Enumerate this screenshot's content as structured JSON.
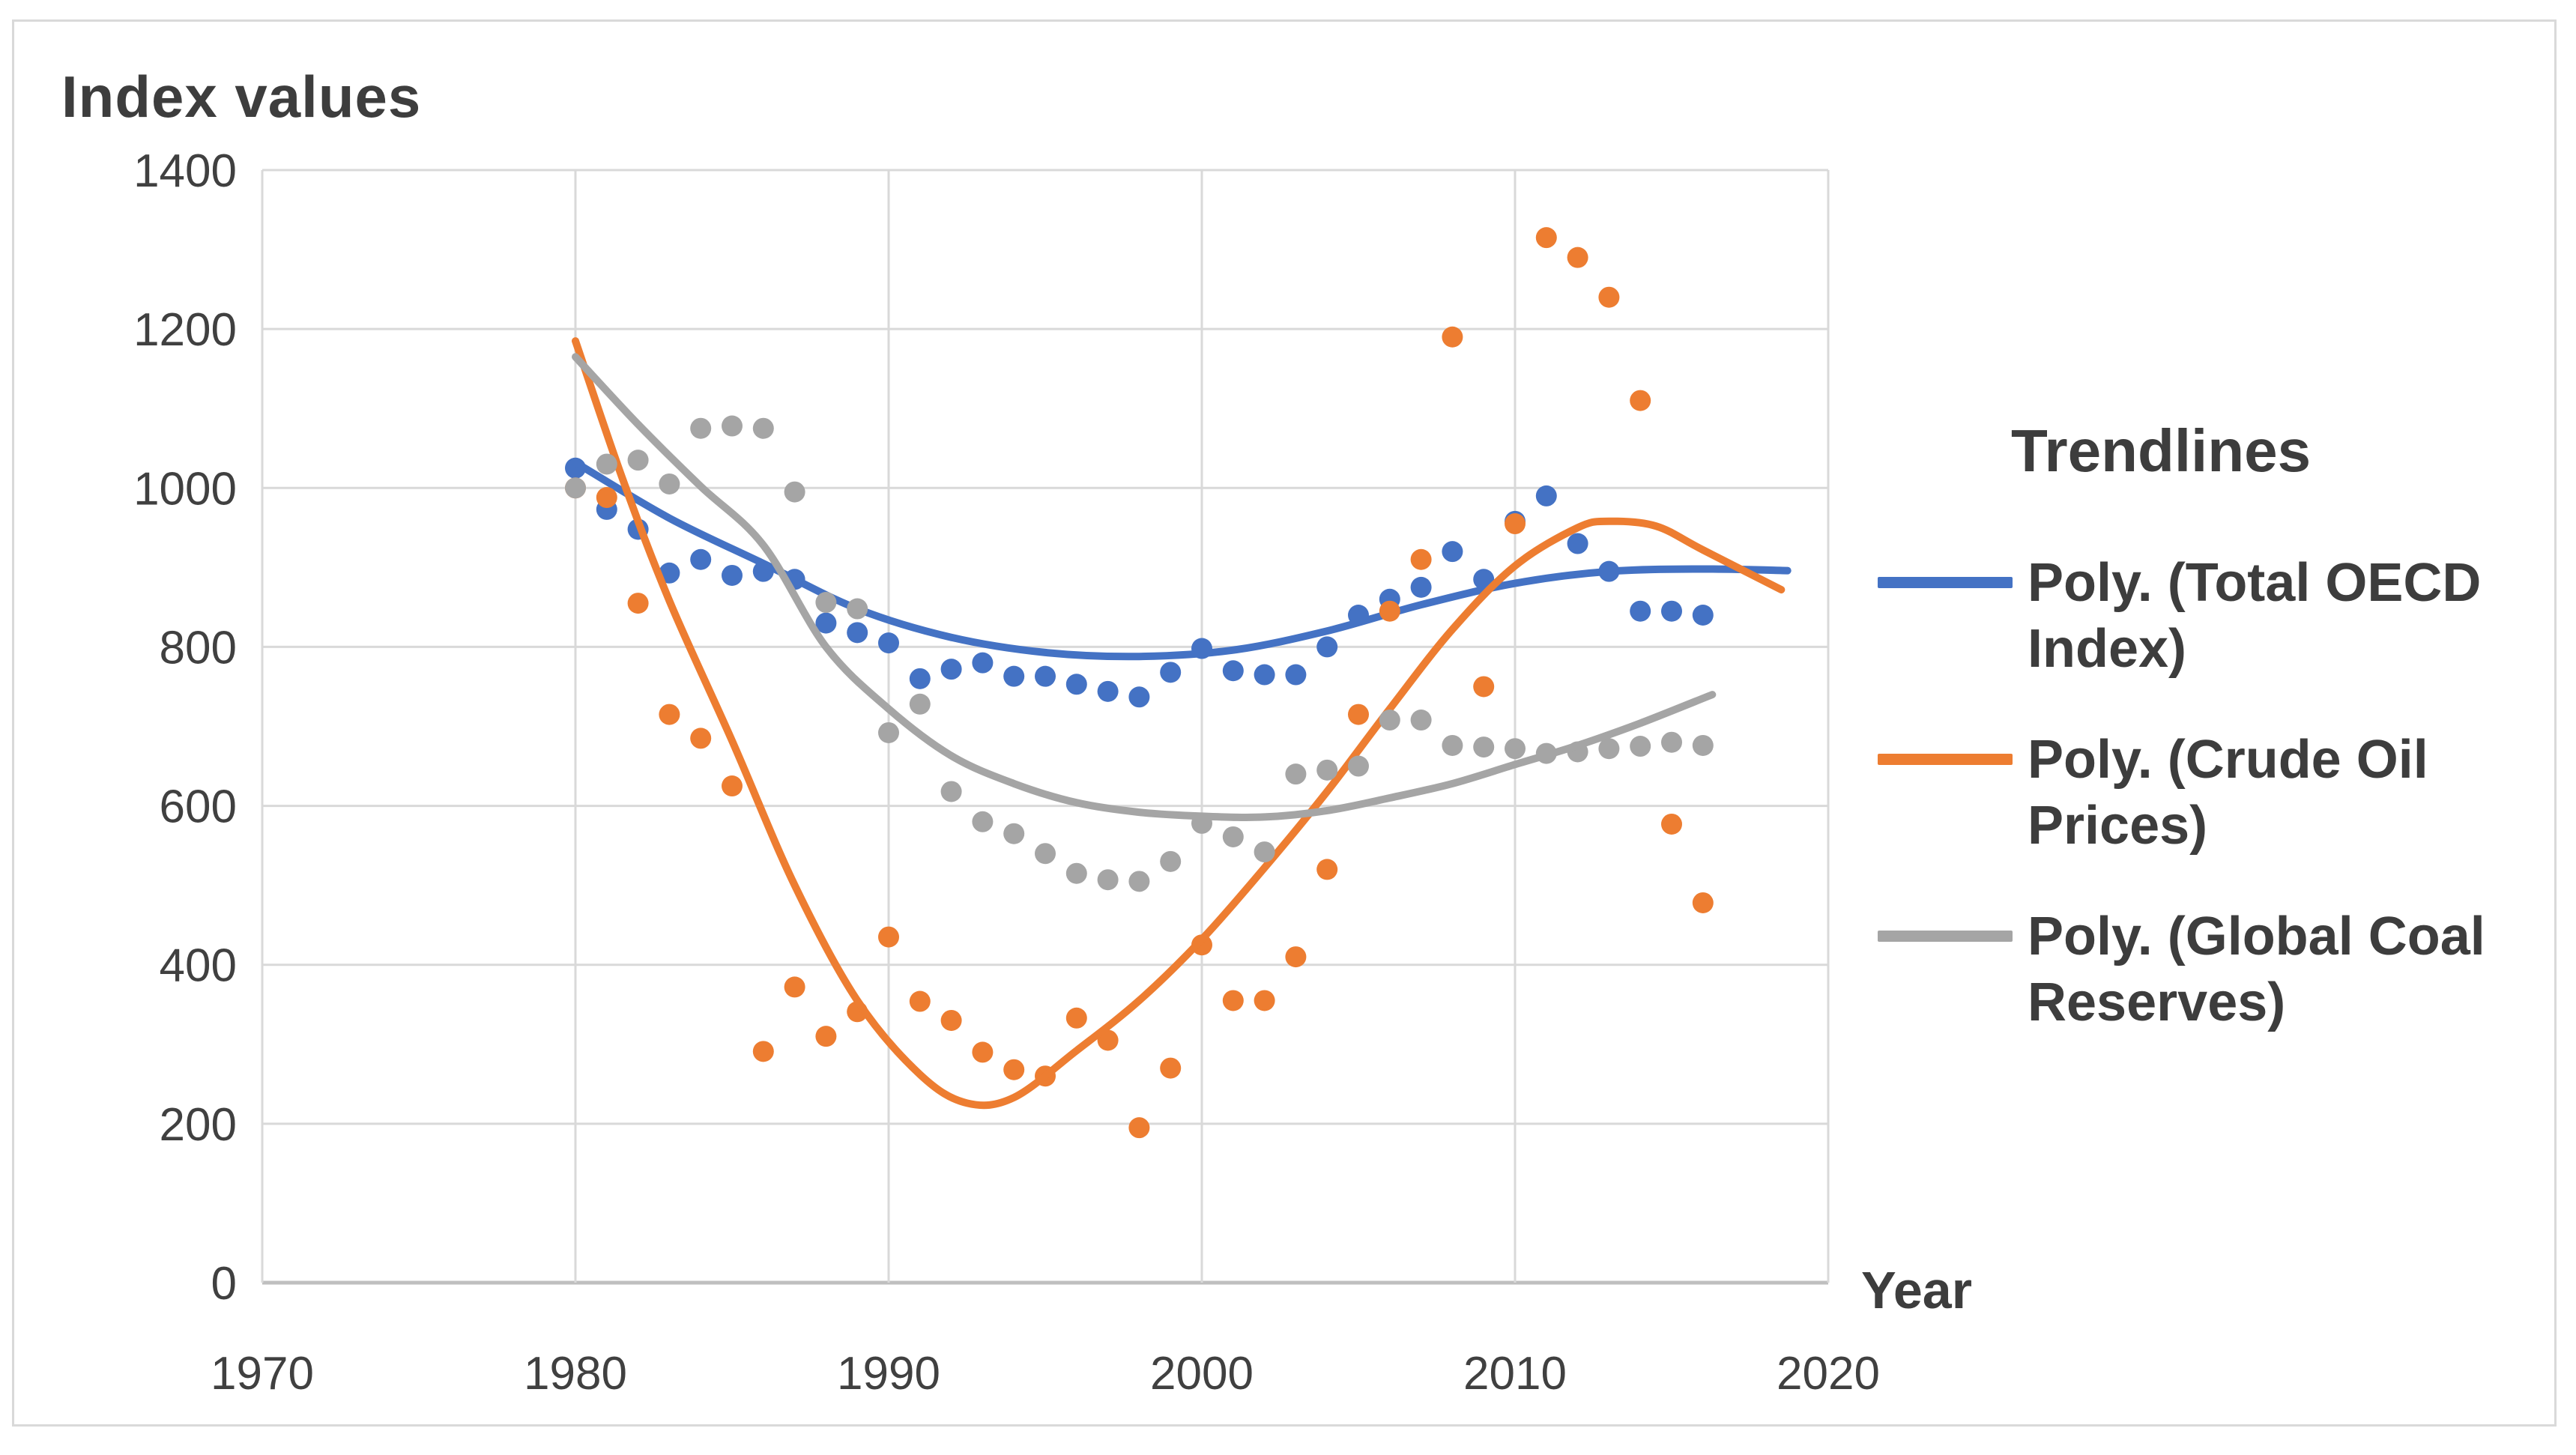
{
  "chart_data": {
    "type": "scatter",
    "title": "",
    "ylabel": "Index values",
    "xlabel": "Year",
    "xlim": [
      1970,
      2020
    ],
    "ylim": [
      0,
      1400
    ],
    "x_ticks": [
      "1970",
      "1980",
      "1990",
      "2000",
      "2010",
      "2020"
    ],
    "y_ticks": [
      "0",
      "200",
      "400",
      "600",
      "800",
      "1000",
      "1200",
      "1400"
    ],
    "grid": true,
    "background": "#ffffff",
    "gridline_color": "#d9d9d9",
    "axis_line_color": "#bfbfbf",
    "tick_text_color": "#404040",
    "years": [
      1980,
      1981,
      1982,
      1983,
      1984,
      1985,
      1986,
      1987,
      1988,
      1989,
      1990,
      1991,
      1992,
      1993,
      1994,
      1995,
      1996,
      1997,
      1998,
      1999,
      2000,
      2001,
      2002,
      2003,
      2004,
      2005,
      2006,
      2007,
      2008,
      2009,
      2010,
      2011,
      2012,
      2013,
      2014,
      2015,
      2016
    ],
    "series": [
      {
        "name": "Total OECD Index",
        "color": "#4472C4",
        "marker": "circle",
        "values": [
          1025,
          973,
          948,
          893,
          910,
          890,
          895,
          885,
          830,
          818,
          805,
          760,
          772,
          780,
          763,
          763,
          753,
          744,
          737,
          768,
          798,
          770,
          765,
          765,
          800,
          840,
          860,
          875,
          920,
          885,
          958,
          990,
          930,
          895,
          845,
          845,
          840
        ]
      },
      {
        "name": "Crude Oil Prices",
        "color": "#ED7D31",
        "marker": "circle",
        "values": [
          1000,
          988,
          855,
          715,
          685,
          625,
          291,
          372,
          310,
          341,
          435,
          354,
          330,
          290,
          268,
          260,
          333,
          305,
          195,
          270,
          425,
          355,
          355,
          410,
          520,
          715,
          845,
          910,
          1190,
          750,
          955,
          1315,
          1290,
          1240,
          1110,
          577,
          478
        ]
      },
      {
        "name": "Global Coal Reserves",
        "color": "#A5A5A5",
        "marker": "circle",
        "values": [
          1000,
          1030,
          1035,
          1005,
          1075,
          1078,
          1075,
          995,
          856,
          848,
          692,
          728,
          618,
          580,
          565,
          540,
          515,
          507,
          505,
          530,
          578,
          561,
          542,
          640,
          645,
          650,
          708,
          708,
          676,
          674,
          672,
          666,
          668,
          672,
          675,
          680,
          676
        ]
      }
    ],
    "trendlines": [
      {
        "name": "Poly. (Total OECD Index)",
        "series": "Total OECD Index",
        "color": "#4472C4",
        "points": [
          [
            1980,
            1032
          ],
          [
            1983,
            962
          ],
          [
            1986,
            905
          ],
          [
            1989,
            848
          ],
          [
            1992,
            812
          ],
          [
            1995,
            793
          ],
          [
            1998,
            788
          ],
          [
            2001,
            796
          ],
          [
            2004,
            820
          ],
          [
            2007,
            853
          ],
          [
            2010,
            880
          ],
          [
            2013,
            895
          ],
          [
            2016,
            898
          ],
          [
            2018.7,
            896
          ]
        ]
      },
      {
        "name": "Poly. (Crude Oil Prices)",
        "series": "Crude Oil Prices",
        "color": "#ED7D31",
        "points": [
          [
            1980,
            1185
          ],
          [
            1981.5,
            1012
          ],
          [
            1983,
            858
          ],
          [
            1985,
            682
          ],
          [
            1987,
            500
          ],
          [
            1989,
            355
          ],
          [
            1991,
            262
          ],
          [
            1992.5,
            226
          ],
          [
            1994,
            233
          ],
          [
            1996,
            292
          ],
          [
            1998,
            355
          ],
          [
            2000,
            432
          ],
          [
            2002,
            522
          ],
          [
            2004,
            618
          ],
          [
            2006,
            722
          ],
          [
            2008,
            822
          ],
          [
            2010,
            902
          ],
          [
            2012,
            950
          ],
          [
            2013,
            958
          ],
          [
            2014.5,
            952
          ],
          [
            2016,
            922
          ],
          [
            2018.5,
            872
          ]
        ]
      },
      {
        "name": "Poly. (Global Coal Reserves)",
        "series": "Global Coal Reserves",
        "color": "#A5A5A5",
        "points": [
          [
            1980,
            1165
          ],
          [
            1982,
            1080
          ],
          [
            1984,
            1002
          ],
          [
            1986,
            928
          ],
          [
            1988,
            800
          ],
          [
            1990,
            722
          ],
          [
            1992,
            663
          ],
          [
            1994,
            628
          ],
          [
            1996,
            604
          ],
          [
            1998,
            592
          ],
          [
            2000,
            587
          ],
          [
            2002,
            586
          ],
          [
            2004,
            594
          ],
          [
            2006,
            610
          ],
          [
            2008,
            628
          ],
          [
            2010,
            652
          ],
          [
            2012,
            676
          ],
          [
            2014,
            704
          ],
          [
            2016.3,
            740
          ]
        ]
      }
    ],
    "legend": {
      "title": "Trendlines",
      "position": "right"
    }
  }
}
